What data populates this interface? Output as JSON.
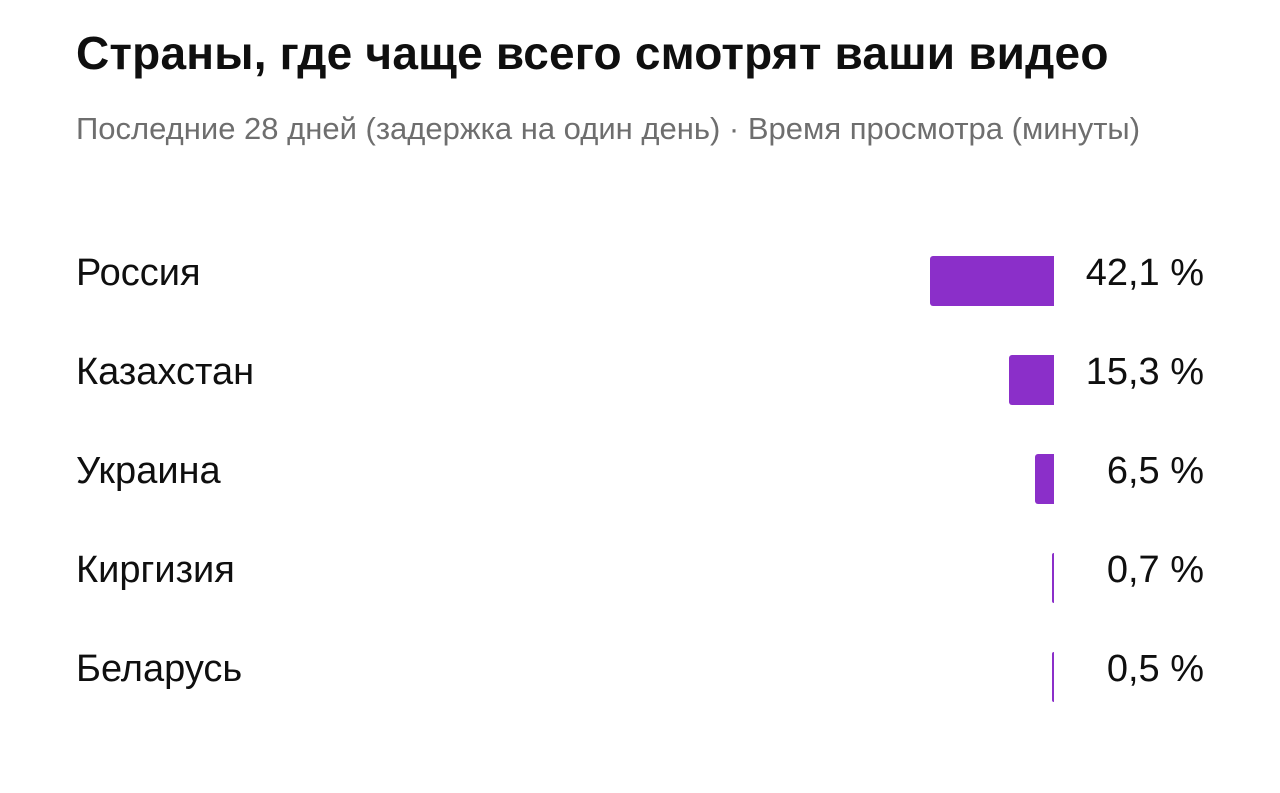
{
  "header": {
    "title": "Страны, где чаще всего смотрят ваши видео",
    "subtitle": "Последние 28 дней (задержка на один день) · Время просмотра (минуты)"
  },
  "colors": {
    "bar": "#8b2fc9"
  },
  "chart_data": {
    "type": "bar",
    "orientation": "horizontal",
    "categories": [
      "Россия",
      "Казахстан",
      "Украина",
      "Киргизия",
      "Беларусь"
    ],
    "values": [
      42.1,
      15.3,
      6.5,
      0.7,
      0.5
    ],
    "value_labels": [
      "42,1 %",
      "15,3 %",
      "6,5 %",
      "0,7 %",
      "0,5 %"
    ],
    "xlim": [
      0,
      42.1
    ],
    "grid": false
  }
}
